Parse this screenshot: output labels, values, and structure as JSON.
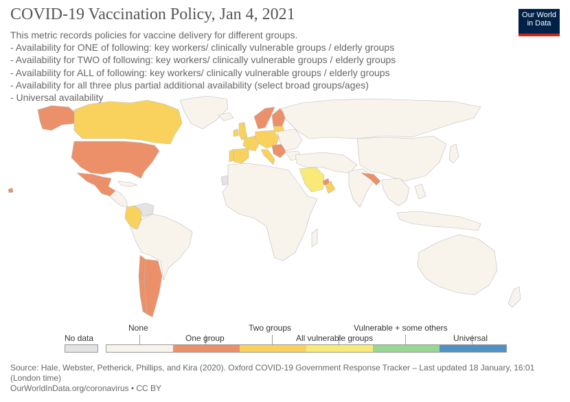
{
  "title": "COVID-19 Vaccination Policy, Jan 4, 2021",
  "subtitle_lines": [
    "This metric records policies for vaccine delivery for different groups.",
    " - Availability for ONE of following: key workers/ clinically vulnerable groups / elderly groups",
    " - Availability for TWO of following: key workers/ clinically vulnerable groups / elderly groups",
    " - Availability for ALL of following: key workers/ clinically vulnerable groups / elderly groups",
    " - Availability for all three plus partial additional availability (select broad groups/ages)",
    " - Universal availability"
  ],
  "logo": {
    "line1": "Our World",
    "line2": "in Data"
  },
  "colors": {
    "no_data": "#e3e3e3",
    "none": "#f8f4ec",
    "one_group": "#eb9068",
    "two_groups": "#f9d25e",
    "all_vulnerable": "#f9ea77",
    "vulnerable_plus": "#97d694",
    "universal": "#4f91c5",
    "ocean": "#ffffff",
    "border": "#bbbbbb"
  },
  "legend": {
    "no_data": "No data",
    "items": [
      "None",
      "One group",
      "Two groups",
      "All vulnerable groups",
      "Vulnerable + some others",
      "Universal"
    ]
  },
  "footer": {
    "source": "Source: Hale, Webster, Petherick, Phillips, and Kira (2020). Oxford COVID-19 Government Response Tracker – Last updated 18 January, 16:01 (London time)",
    "url": "OurWorldInData.org/coronavirus • CC BY"
  },
  "regions": [
    {
      "name": "canada",
      "category": "two_groups"
    },
    {
      "name": "united-states",
      "category": "one_group"
    },
    {
      "name": "alaska",
      "category": "one_group"
    },
    {
      "name": "greenland",
      "category": "none"
    },
    {
      "name": "mexico",
      "category": "one_group"
    },
    {
      "name": "central-america",
      "category": "none"
    },
    {
      "name": "venezuela",
      "category": "no_data"
    },
    {
      "name": "colombia",
      "category": "two_groups"
    },
    {
      "name": "south-america",
      "category": "none"
    },
    {
      "name": "argentina",
      "category": "one_group"
    },
    {
      "name": "chile",
      "category": "one_group"
    },
    {
      "name": "iceland",
      "category": "none"
    },
    {
      "name": "united-kingdom",
      "category": "two_groups"
    },
    {
      "name": "ireland",
      "category": "two_groups"
    },
    {
      "name": "spain",
      "category": "two_groups"
    },
    {
      "name": "portugal",
      "category": "two_groups"
    },
    {
      "name": "france",
      "category": "two_groups"
    },
    {
      "name": "central-europe",
      "category": "two_groups"
    },
    {
      "name": "italy",
      "category": "two_groups"
    },
    {
      "name": "scandinavia",
      "category": "one_group"
    },
    {
      "name": "finland",
      "category": "one_group"
    },
    {
      "name": "baltics",
      "category": "two_groups"
    },
    {
      "name": "balkans",
      "category": "one_group"
    },
    {
      "name": "russia",
      "category": "none"
    },
    {
      "name": "eastern-europe",
      "category": "none"
    },
    {
      "name": "western-sahara",
      "category": "no_data"
    },
    {
      "name": "africa",
      "category": "none"
    },
    {
      "name": "middle-east",
      "category": "none"
    },
    {
      "name": "saudi-arabia",
      "category": "all_vulnerable"
    },
    {
      "name": "oman",
      "category": "two_groups"
    },
    {
      "name": "uae",
      "category": "one_group"
    },
    {
      "name": "india",
      "category": "none"
    },
    {
      "name": "bangladesh",
      "category": "one_group"
    },
    {
      "name": "china",
      "category": "none"
    },
    {
      "name": "southeast-asia",
      "category": "none"
    },
    {
      "name": "japan",
      "category": "none"
    },
    {
      "name": "indonesia",
      "category": "none"
    },
    {
      "name": "australia",
      "category": "none"
    },
    {
      "name": "new-zealand",
      "category": "none"
    },
    {
      "name": "madagascar",
      "category": "none"
    },
    {
      "name": "hawaii",
      "category": "one_group"
    }
  ]
}
